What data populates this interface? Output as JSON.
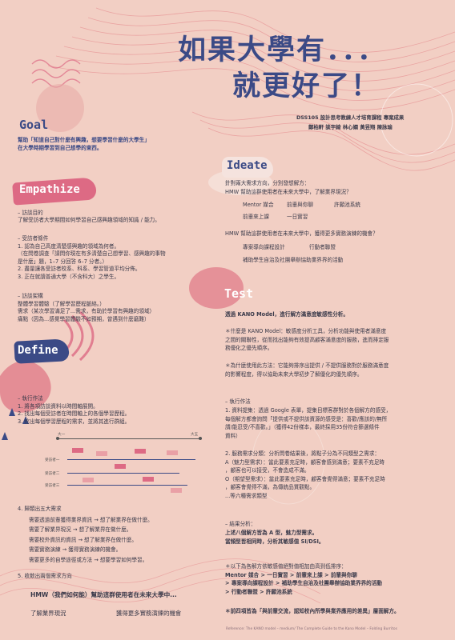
{
  "title": {
    "line1": "如果大學有．．．",
    "line2": "就更好了！"
  },
  "project": {
    "line1": "DSS105 設計思考教練人才培育課程 專案成果",
    "line2": "鄭柏軒 談宇綺 林心嫻 黃昱翔 陳詠瑜"
  },
  "colors": {
    "navy": "#3b4a86",
    "pink": "#dd6a84",
    "bg": "#f2cfc4"
  },
  "goal": {
    "heading": "Goal",
    "text": [
      "幫助「知道自己對什麼有興趣，想要學習什麼的大學生」",
      "在大學時期學習到自己想學的東西。"
    ]
  },
  "empathize": {
    "heading": "Empathize",
    "purpose_title": "– 訪談目的",
    "purpose_text": "了解受訪者大學期間如何學習自己感興趣領域的知識 / 能力。",
    "conditions_title": "– 受訪者條件",
    "conditions": [
      "1. 認為自己高度清楚感興趣的領域為何者。",
      "（在問卷調查「請問你現在有多清楚自己想學習、感興趣的事物",
      "是什麼」題，1–7 分回答 6–7 分者。）",
      "2. 盡量讓各受訪者校系、科系、學習管道平均分佈。",
      "3. 正在就讀普通大學（不含科大）之學生。"
    ],
    "structure_title": "– 訪談架構",
    "structure": [
      "整體學習體驗（了解學習歷程脈絡。）",
      "需求（某次學習滿足了...需求，有助於學習有興趣的領域）",
      "痛點（因為...感覺學習體驗不如預期，曾遇到什麼磨難）"
    ]
  },
  "define": {
    "heading": "Define",
    "process_title": "– 執行作法",
    "process": [
      "1. 將各項訪談資料以時間軸展開。",
      "2. 找出每個受訪者在時間軸上的各個學習歷程。",
      "3. 挖出每個學習歷程的需求，並將其進行群組。"
    ],
    "timeline": {
      "start": "大一",
      "end": "大五",
      "rows": [
        "受訪者一",
        "受訪者二",
        "受訪者三"
      ]
    },
    "needs_title": "4. 歸類出五大需求",
    "needs": [
      "需要透過前輩獲得業界資訊 → 想了解業界在做什麼。",
      "需要了解業界現況 → 想了解業界在做什麼。",
      "需要校外資訊的資訊 → 想了解業界在做什麼。",
      "需要實務演練 → 獲得實務演練的機會。",
      "需要更多的自學途徑或方法 → 想要學習如何學習。"
    ],
    "hmw_title": "5. 收斂出兩個需求方向",
    "hmw": "HMW（我們如何能）幫助這群使用者在未來大學中...",
    "hmw_a": "了解業界現況",
    "hmw_b": "獲得更多實務演練的機會"
  },
  "ideate": {
    "heading": "Ideate",
    "intro": [
      "針對兩大需求方向，分別發想解方：",
      "HMW 幫助這群使用者在未來大學中，了解業界現況？"
    ],
    "ideas_a": [
      "Mentor 媒合",
      "前輩與你聊",
      "許願池系統",
      "前輩來上課",
      "一日實習"
    ],
    "question_b": "HMW 幫助這群使用者在未來大學中，獲得更多實務演練的機會？",
    "ideas_b": [
      "專案導向課程設計",
      "行動者聯盟",
      "補助學生自治及社團舉辦協助業界界的活動"
    ]
  },
  "test": {
    "heading": "Test",
    "intro": "透過 KANO Model，進行解方滿意度敏感性分析。",
    "q1": [
      "＊什麼是 KANO Model：敏感度分析工具，分析功能與使用者滿意度",
      "之間的關聯性，從而找出能夠有效提高顧客滿意度的服務，進而排定服",
      "務優化之優先順序。"
    ],
    "q2": [
      "＊為什麼使用此方法：它能夠排序出提供 / 不提供服務對於服務滿意度",
      "的影響程度，得以協助未來大學初步了解優化的優先順序。"
    ],
    "process_title": "– 執行作法",
    "process": [
      "1. 資料提集：透過 Google 表單，提集目標客群對於各個解方的感受，",
      "每個解方都會詢問「提供或不提供該資源的感受是：喜歡/應該的/無所",
      "謂/能忍受/不喜歡。」（獲得42份樣本，最終採用35份符合篩選條件",
      "資料）"
    ],
    "classify": [
      "2. 服務需求分類：分析問卷結果後，將點子分為不同類型之需求：",
      "A（魅力型需求）：當此要素充足時，顧客會感到滿意；要素不充足時",
      "，顧客也可以接受，不會造成不滿。",
      "O（期望型需求）：當此要素充足時，顧客會覺得滿意；要素不充足時",
      "，顧客會覺得不滿，為傳統品質觀點。",
      "...等六種需求類型"
    ],
    "result_title": "– 結果分析：",
    "result": [
      "上述八個解方皆為 A 型，魅力型需求。",
      "當頻型皆相同時，分析其敏感值 SI/DSI。"
    ],
    "ranking": [
      "＊以下為各解方依敏感值絕對值相加由高到低排序：",
      "Mentor 媒合 > 一日實習 > 前輩來上課 > 前輩與你聊",
      " > 專案導向課程設計 > 補助學生自治及社團舉辦協助業界界的活動",
      " > 行動者聯盟 > 許願池系統"
    ],
    "conclusion": "＊前四項皆為「與前輩交流，認知校內所學與業界應用的差異」層面解方。"
  },
  "reference": "Reference: The KANO model – medium/ The Complete Guide to the Kano Model – Folding Burritos"
}
